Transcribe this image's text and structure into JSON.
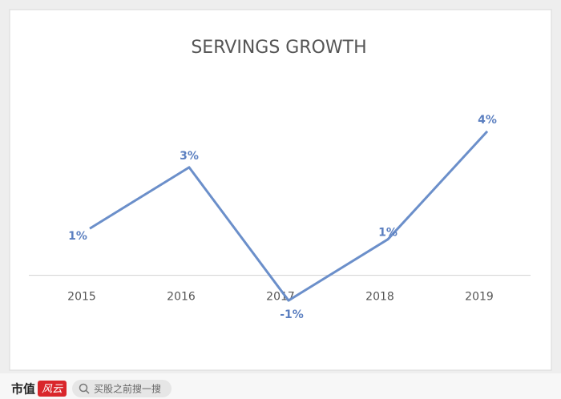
{
  "chart_data": {
    "type": "line",
    "title": "SERVINGS GROWTH",
    "categories": [
      "2015",
      "2016",
      "2017",
      "2018",
      "2019"
    ],
    "series": [
      {
        "name": "Servings growth",
        "color": "#6b8fca",
        "values": [
          1.3,
          3,
          -0.7,
          1,
          4
        ],
        "value_labels": [
          "1%",
          "3%",
          "-1%",
          "1%",
          "4%"
        ]
      }
    ],
    "ylim": [
      -1.7,
      5.2
    ]
  },
  "footer": {
    "logo_a": "市值",
    "logo_b": "风云",
    "search": "买股之前搜一搜"
  }
}
